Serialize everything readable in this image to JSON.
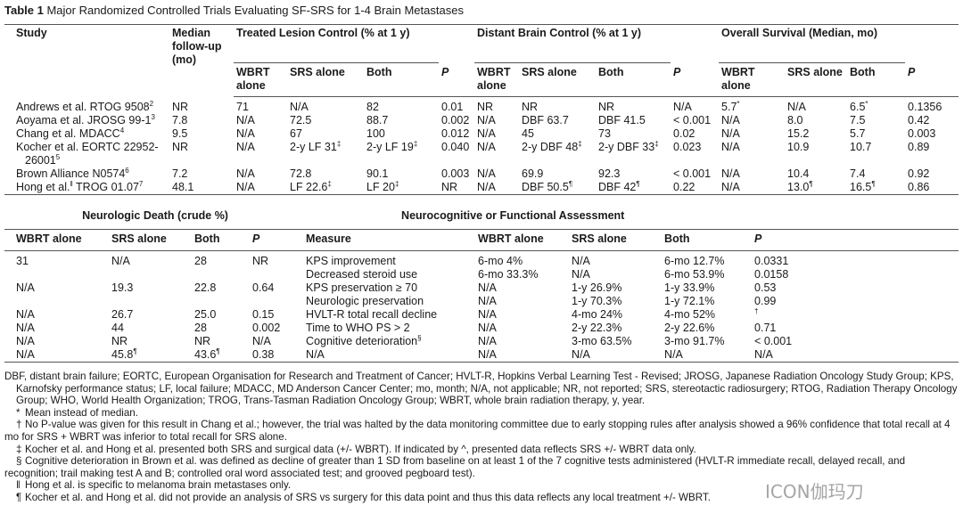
{
  "table_label": "Table 1",
  "title": "Major Randomized Controlled Trials Evaluating SF-SRS for 1-4 Brain Metastases",
  "top": {
    "study_header": "Study",
    "median_header": "Median follow-up (mo)",
    "groups": [
      {
        "title": "Treated Lesion Control (% at 1 y)",
        "subcolumns": [
          "WBRT alone",
          "SRS alone",
          "Both",
          "P"
        ]
      },
      {
        "title": "Distant Brain Control (% at 1 y)",
        "subcolumns": [
          "WBRT alone",
          "SRS alone",
          "Both",
          "P"
        ]
      },
      {
        "title": "Overall Survival (Median, mo)",
        "subcolumns": [
          "WBRT alone",
          "SRS alone",
          "Both",
          "P"
        ]
      }
    ],
    "rows": [
      [
        [
          "Andrews et al. RTOG 9508",
          {
            "sup": "2"
          }
        ],
        "NR",
        "71",
        "N/A",
        "82",
        "0.01",
        "NR",
        "NR",
        "NR",
        "N/A",
        [
          "5.7",
          {
            "sup": "*"
          }
        ],
        "N/A",
        [
          "6.5",
          {
            "sup": "*"
          }
        ],
        "0.1356"
      ],
      [
        [
          "Aoyama et al. JROSG 99-1",
          {
            "sup": "3"
          }
        ],
        "7.8",
        "N/A",
        "72.5",
        "88.7",
        "0.002",
        "N/A",
        "DBF 63.7",
        "DBF 41.5",
        "< 0.001",
        "N/A",
        "8.0",
        "7.5",
        "0.42"
      ],
      [
        [
          "Chang et al. MDACC",
          {
            "sup": "4"
          }
        ],
        "9.5",
        "N/A",
        "67",
        "100",
        "0.012",
        "N/A",
        "45",
        "73",
        "0.02",
        "N/A",
        "15.2",
        "5.7",
        "0.003"
      ],
      [
        [
          "Kocher et al. EORTC 22952-26001",
          {
            "sup": "5"
          }
        ],
        "NR",
        "N/A",
        [
          "2-y LF 31",
          {
            "sup": "‡"
          }
        ],
        [
          "2-y LF 19",
          {
            "sup": "‡"
          }
        ],
        "0.040",
        "N/A",
        [
          "2-y DBF 48",
          {
            "sup": "‡"
          }
        ],
        [
          "2-y DBF 33",
          {
            "sup": "‡"
          }
        ],
        "0.023",
        "N/A",
        "10.9",
        "10.7",
        "0.89"
      ],
      [
        [
          "Brown Alliance N0574",
          {
            "sup": "6"
          }
        ],
        "7.2",
        "N/A",
        "72.8",
        "90.1",
        "0.003",
        "N/A",
        "69.9",
        "92.3",
        "< 0.001",
        "N/A",
        "10.4",
        "7.4",
        "0.92"
      ],
      [
        [
          "Hong et al.",
          {
            "sup": "‖"
          },
          " TROG 01.07",
          {
            "sup": "7"
          }
        ],
        "48.1",
        "N/A",
        [
          "LF 22.6",
          {
            "sup": "‡"
          }
        ],
        [
          "LF 20",
          {
            "sup": "‡"
          }
        ],
        "NR",
        "N/A",
        [
          "DBF 50.5",
          {
            "sup": "¶"
          }
        ],
        [
          "DBF 42",
          {
            "sup": "¶"
          }
        ],
        "0.22",
        "N/A",
        [
          "13.0",
          {
            "sup": "¶"
          }
        ],
        [
          "16.5",
          {
            "sup": "¶"
          }
        ],
        "0.86"
      ]
    ]
  },
  "neuro": {
    "title": "Neurologic Death (crude %)",
    "columns": [
      "WBRT alone",
      "SRS alone",
      "Both",
      "P"
    ],
    "rows": [
      [
        "31",
        "N/A",
        "28",
        "NR"
      ],
      null,
      [
        "N/A",
        "19.3",
        "22.8",
        "0.64"
      ],
      null,
      [
        "N/A",
        "26.7",
        "25.0",
        "0.15"
      ],
      [
        "N/A",
        "44",
        "28",
        "0.002"
      ],
      [
        "N/A",
        "NR",
        "NR",
        "N/A"
      ],
      [
        "N/A",
        [
          "45.8",
          {
            "sup": "¶"
          }
        ],
        [
          "43.6",
          {
            "sup": "¶"
          }
        ],
        "0.38"
      ]
    ]
  },
  "functional": {
    "title": "Neurocognitive or Functional Assessment",
    "columns": [
      "Measure",
      "WBRT alone",
      "SRS alone",
      "Both",
      "P"
    ],
    "rows": [
      [
        "KPS improvement",
        "6-mo 4%",
        "N/A",
        "6-mo 12.7%",
        "0.0331"
      ],
      [
        "Decreased steroid use",
        "6-mo 33.3%",
        "N/A",
        "6-mo 53.9%",
        "0.0158"
      ],
      [
        "KPS preservation ≥ 70",
        "N/A",
        "1-y 26.9%",
        "1-y 33.9%",
        "0.53"
      ],
      [
        "Neurologic preservation",
        "N/A",
        "1-y 70.3%",
        "1-y 72.1%",
        "0.99"
      ],
      [
        "HVLT-R total recall decline",
        "N/A",
        "4-mo 24%",
        "4-mo 52%",
        [
          {
            "sup": "†"
          }
        ]
      ],
      [
        "Time to WHO PS > 2",
        "N/A",
        "2-y 22.3%",
        "2-y 22.6%",
        "0.71"
      ],
      [
        [
          "Cognitive deterioration",
          {
            "sup": "§"
          }
        ],
        "N/A",
        "3-mo 63.5%",
        "3-mo 91.7%",
        "< 0.001"
      ],
      [
        "N/A",
        "N/A",
        "N/A",
        "N/A",
        "N/A"
      ]
    ]
  },
  "abbreviations": "DBF, distant brain failure; EORTC, European Organisation for Research and Treatment of Cancer; HVLT-R, Hopkins Verbal Learning Test - Revised; JROSG, Japanese Radiation Oncology Study Group; KPS, Karnofsky performance status; LF, local failure; MDACC, MD Anderson Cancer Center; mo, month; N/A, not applicable; NR, not reported; SRS, stereotactic radiosurgery; RTOG, Radiation Therapy Oncology Group; WHO, World Health Organization; TROG, Trans-Tasman Radiation Oncology Group; WBRT, whole brain radiation therapy, y, year.",
  "footnotes": [
    {
      "mark": "*",
      "text": "Mean instead of median."
    },
    {
      "mark": "†",
      "text": "No P-value was given for this result in Chang et al.; however, the trial was halted by the data monitoring committee due to early stopping rules after analysis showed a 96% confidence that total recall at 4 mo for SRS + WBRT was inferior to total recall for SRS alone."
    },
    {
      "mark": "‡",
      "text": "Kocher et al. and Hong et al. presented both SRS and surgical data (+/- WBRT). If indicated by ^, presented data reflects SRS +/- WBRT data only."
    },
    {
      "mark": "§",
      "text": "Cognitive deterioration in Brown et al. was defined as decline of greater than 1 SD from baseline on at least 1 of the 7 cognitive tests administered (HVLT-R immediate recall, delayed recall, and recognition; trail making test A and B; controlled oral word associated test; and grooved pegboard test)."
    },
    {
      "mark": "‖",
      "text": "Hong et al. is specific to melanoma brain metastases only."
    },
    {
      "mark": "¶",
      "text": "Kocher et al. and Hong et al. did not provide an analysis of SRS vs surgery for this data point and thus this data reflects any local treatment +/- WBRT."
    }
  ],
  "watermark": "ICON伽玛刀"
}
